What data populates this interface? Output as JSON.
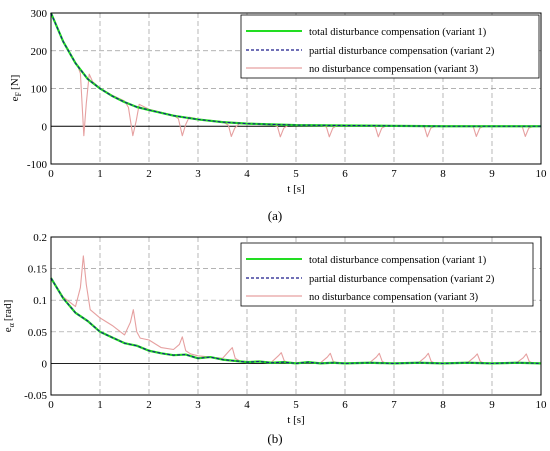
{
  "colors": {
    "variant1": "#22dd22",
    "variant2": "#1a1a8a",
    "variant3": "#e6a0a0",
    "grid": "#9a9a9a",
    "zero_line": "#000000"
  },
  "chart_data": [
    {
      "type": "line",
      "caption": "(a)",
      "xlabel": "t [s]",
      "ylabel": "e_F [N]",
      "ylabel_main": "e",
      "ylabel_sub": "F",
      "ylabel_unit": "[N]",
      "xlim": [
        0,
        10
      ],
      "ylim": [
        -100,
        300
      ],
      "xticks": [
        "0",
        "1",
        "2",
        "3",
        "4",
        "5",
        "6",
        "7",
        "8",
        "9",
        "10"
      ],
      "yticks": [
        "-100",
        "0",
        "100",
        "200",
        "300"
      ],
      "grid": true,
      "legend_position": "top-right",
      "series": [
        {
          "name": "total disturbance compensation (variant 1)",
          "x": [
            0,
            0.25,
            0.5,
            0.75,
            1,
            1.25,
            1.5,
            1.75,
            2,
            2.5,
            3,
            3.5,
            4,
            4.5,
            5,
            6,
            7,
            8,
            9,
            10
          ],
          "values": [
            300,
            224,
            167,
            125,
            100,
            80,
            64,
            51,
            43,
            28,
            18,
            11,
            7,
            5,
            3,
            2,
            1,
            0,
            0,
            0
          ]
        },
        {
          "name": "partial disturbance compensation (variant 2)",
          "x": [
            0,
            0.25,
            0.5,
            0.75,
            1,
            1.25,
            1.5,
            1.75,
            2,
            2.5,
            3,
            3.5,
            4,
            4.5,
            5,
            6,
            7,
            8,
            9,
            10
          ],
          "values": [
            300,
            224,
            167,
            125,
            100,
            80,
            64,
            51,
            43,
            28,
            18,
            11,
            7,
            5,
            3,
            2,
            1,
            0,
            0,
            0
          ]
        },
        {
          "name": "no disturbance compensation (variant 3)",
          "x": [
            0,
            0.25,
            0.5,
            0.55,
            0.6,
            0.67,
            0.72,
            0.78,
            0.85,
            1,
            1.25,
            1.5,
            1.58,
            1.67,
            1.74,
            1.8,
            2,
            2.25,
            2.5,
            2.6,
            2.68,
            2.75,
            2.82,
            3,
            3.5,
            3.62,
            3.68,
            3.75,
            3.85,
            4,
            4.5,
            4.62,
            4.68,
            4.75,
            4.85,
            5,
            5.5,
            5.62,
            5.68,
            5.75,
            5.85,
            6,
            6.5,
            6.62,
            6.68,
            6.75,
            6.85,
            7,
            7.5,
            7.62,
            7.68,
            7.75,
            7.85,
            8,
            8.5,
            8.62,
            8.68,
            8.75,
            8.85,
            9,
            9.5,
            9.62,
            9.68,
            9.75,
            9.85,
            10
          ],
          "values": [
            300,
            225,
            168,
            158,
            140,
            -25,
            60,
            138,
            118,
            101,
            82,
            67,
            50,
            -25,
            15,
            58,
            45,
            37,
            29,
            20,
            -25,
            5,
            24,
            19,
            12,
            3,
            -27,
            -5,
            8,
            8,
            5,
            0,
            -28,
            -5,
            4,
            4,
            3,
            -2,
            -28,
            -5,
            3,
            3,
            2,
            -2,
            -28,
            -5,
            2,
            2,
            1,
            -2,
            -28,
            -5,
            1,
            1,
            1,
            -2,
            -27,
            -5,
            1,
            1,
            0,
            -2,
            -27,
            -5,
            0,
            0
          ]
        }
      ]
    },
    {
      "type": "line",
      "caption": "(b)",
      "xlabel": "t [s]",
      "ylabel": "e_α [rad]",
      "ylabel_main": "e",
      "ylabel_sub": "α",
      "ylabel_unit": "[rad]",
      "xlim": [
        0,
        10
      ],
      "ylim": [
        -0.05,
        0.2
      ],
      "xticks": [
        "0",
        "1",
        "2",
        "3",
        "4",
        "5",
        "6",
        "7",
        "8",
        "9",
        "10"
      ],
      "yticks": [
        "-0.05",
        "0",
        "0.05",
        "0.1",
        "0.15",
        "0.2"
      ],
      "grid": true,
      "legend_position": "top-right",
      "series": [
        {
          "name": "total disturbance compensation (variant 1)",
          "x": [
            0,
            0.25,
            0.5,
            0.75,
            1,
            1.25,
            1.5,
            1.75,
            2,
            2.25,
            2.5,
            2.75,
            3,
            3.25,
            3.5,
            3.75,
            4,
            4.25,
            4.5,
            4.75,
            5,
            5.25,
            5.5,
            5.75,
            6,
            6.5,
            7,
            7.5,
            8,
            8.5,
            9,
            9.5,
            10
          ],
          "values": [
            0.135,
            0.103,
            0.08,
            0.067,
            0.05,
            0.041,
            0.032,
            0.028,
            0.02,
            0.016,
            0.013,
            0.014,
            0.008,
            0.01,
            0.006,
            0.004,
            0.002,
            0.003,
            0.001,
            0.002,
            0,
            0.002,
            0,
            0.001,
            0,
            0.001,
            0,
            0.001,
            0,
            0.001,
            0,
            0.001,
            0
          ]
        },
        {
          "name": "partial disturbance compensation (variant 2)",
          "x": [
            0,
            0.25,
            0.5,
            0.75,
            1,
            1.25,
            1.5,
            1.75,
            2,
            2.25,
            2.5,
            2.75,
            3,
            3.25,
            3.5,
            3.75,
            4,
            4.25,
            4.5,
            4.75,
            5,
            5.25,
            5.5,
            5.75,
            6,
            6.5,
            7,
            7.5,
            8,
            8.5,
            9,
            9.5,
            10
          ],
          "values": [
            0.135,
            0.103,
            0.08,
            0.067,
            0.05,
            0.041,
            0.032,
            0.028,
            0.02,
            0.016,
            0.013,
            0.014,
            0.008,
            0.01,
            0.006,
            0.004,
            0.002,
            0.003,
            0.001,
            0.002,
            0,
            0.002,
            0,
            0.001,
            0,
            0.001,
            0,
            0.001,
            0,
            0.001,
            0,
            0.001,
            0
          ]
        },
        {
          "name": "no disturbance compensation (variant 3)",
          "x": [
            0,
            0.25,
            0.5,
            0.6,
            0.66,
            0.72,
            0.8,
            1,
            1.25,
            1.5,
            1.62,
            1.68,
            1.75,
            1.82,
            2,
            2.25,
            2.5,
            2.62,
            2.68,
            2.75,
            2.85,
            3,
            3.5,
            3.64,
            3.7,
            3.76,
            3.85,
            4,
            4.5,
            4.64,
            4.7,
            4.76,
            4.85,
            5,
            5.5,
            5.64,
            5.7,
            5.76,
            5.85,
            6,
            6.5,
            6.64,
            6.7,
            6.76,
            6.85,
            7,
            7.5,
            7.64,
            7.7,
            7.76,
            7.85,
            8,
            8.5,
            8.64,
            8.7,
            8.76,
            8.85,
            9,
            9.5,
            9.64,
            9.7,
            9.76,
            9.85,
            10
          ],
          "values": [
            0.135,
            0.105,
            0.09,
            0.12,
            0.17,
            0.125,
            0.085,
            0.072,
            0.06,
            0.045,
            0.065,
            0.085,
            0.05,
            0.04,
            0.037,
            0.025,
            0.022,
            0.03,
            0.042,
            0.02,
            0.015,
            0.012,
            0.008,
            0.02,
            0.025,
            0.008,
            0.004,
            0.003,
            0.002,
            0.012,
            0.017,
            0.004,
            0.001,
            0.001,
            0.001,
            0.01,
            0.016,
            0.003,
            0.001,
            0,
            0.001,
            0.01,
            0.016,
            0.003,
            0,
            0,
            0.001,
            0.01,
            0.016,
            0.003,
            0,
            0,
            0.001,
            0.01,
            0.015,
            0.003,
            0,
            0,
            0.001,
            0.009,
            0.015,
            0.003,
            0,
            0
          ]
        }
      ]
    }
  ]
}
